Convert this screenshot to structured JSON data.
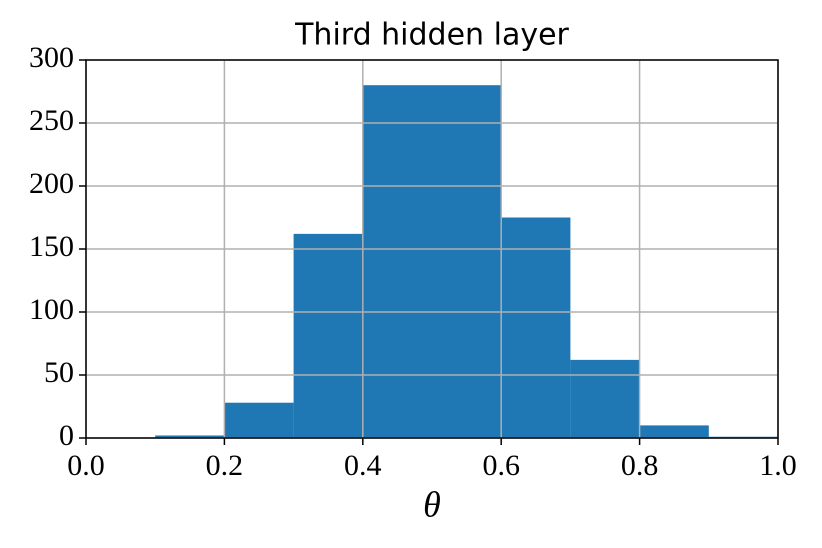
{
  "chart_data": {
    "type": "histogram",
    "title": "Third hidden layer",
    "x_label": "θ",
    "bins": [
      0,
      0.1,
      0.2,
      0.3,
      0.4,
      0.5,
      0.6,
      0.7,
      0.8,
      0.9,
      1.0
    ],
    "values": [
      0,
      2,
      28,
      162,
      280,
      280,
      175,
      62,
      10,
      1
    ],
    "color": "#1f77b4",
    "xlim": [
      0,
      1
    ],
    "ylim": [
      0,
      300
    ],
    "xticks": [
      {
        "value": 0,
        "label": "0.0"
      },
      0.2,
      0.4,
      0.6,
      0.8,
      {
        "value": 1,
        "label": "1.0"
      }
    ],
    "yticks": [
      0,
      50,
      100,
      150,
      200,
      250,
      300
    ],
    "grid": true
  }
}
